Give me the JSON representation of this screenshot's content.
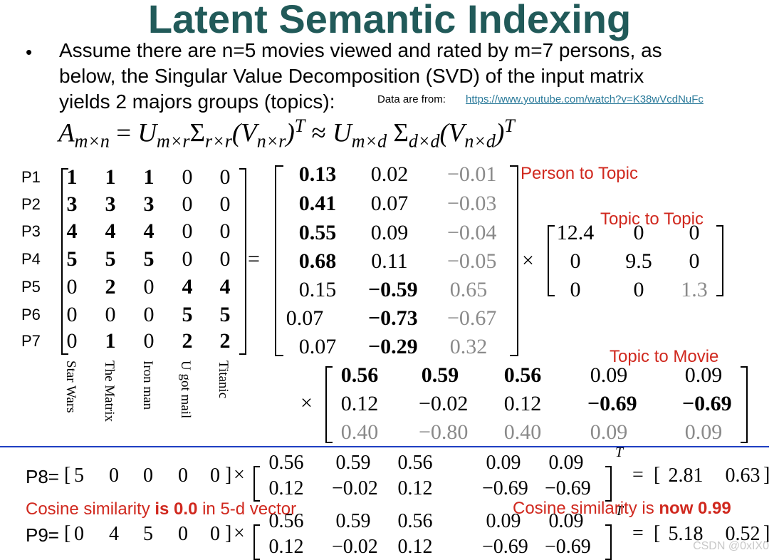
{
  "title": "Latent Semantic Indexing",
  "bullet": {
    "symbol": "•",
    "lines": [
      "Assume there are n=5 movies viewed and rated by m=7 persons, as",
      "below, the Singular Value Decomposition (SVD) of the input matrix",
      "yields 2 majors groups (topics):"
    ],
    "source_label": "Data are from:",
    "source_link": "https://www.youtube.com/watch?v=K38wVcdNuFc"
  },
  "equation": {
    "lhs": "A",
    "lhs_sub": "m×n",
    "eq": "=",
    "u": "U",
    "u_sub": "m×r",
    "s": "Σ",
    "s_sub": "r×r",
    "v_open": "(V",
    "v_sub": "n×r",
    "v_close": ")",
    "t": "T",
    "approx": "≈",
    "u2": "U",
    "u2_sub": "m×d",
    "s2": "Σ",
    "s2_sub": "d×d",
    "v2_open": "(V",
    "v2_sub": "n×d",
    "v2_close": ")",
    "t2": "T"
  },
  "persons": [
    "P1",
    "P2",
    "P3",
    "P4",
    "P5",
    "P6",
    "P7"
  ],
  "movies": [
    "Star Wars",
    "The Matrix",
    "Iron man",
    "U got mail",
    "Titanic"
  ],
  "ratings": [
    [
      "1",
      "1",
      "1",
      "0",
      "0"
    ],
    [
      "3",
      "3",
      "3",
      "0",
      "0"
    ],
    [
      "4",
      "4",
      "4",
      "0",
      "0"
    ],
    [
      "5",
      "5",
      "5",
      "0",
      "0"
    ],
    [
      "0",
      "2",
      "0",
      "4",
      "4"
    ],
    [
      "0",
      "0",
      "0",
      "5",
      "5"
    ],
    [
      "0",
      "1",
      "0",
      "2",
      "2"
    ]
  ],
  "ops": {
    "equals": "=",
    "times": "×"
  },
  "u_matrix": [
    [
      "0.13",
      "0.02",
      "−0.01"
    ],
    [
      "0.41",
      "0.07",
      "−0.03"
    ],
    [
      "0.55",
      "0.09",
      "−0.04"
    ],
    [
      "0.68",
      "0.11",
      "−0.05"
    ],
    [
      "0.15",
      "−0.59",
      "0.65"
    ],
    [
      "0.07",
      "−0.73",
      "−0.67"
    ],
    [
      "0.07",
      "−0.29",
      "0.32"
    ]
  ],
  "sigma_matrix": [
    [
      "12.4",
      "0",
      "0"
    ],
    [
      "0",
      "9.5",
      "0"
    ],
    [
      "0",
      "0",
      "1.3"
    ]
  ],
  "v_matrix": [
    [
      "0.56",
      "0.59",
      "0.56",
      "0.09",
      "0.09"
    ],
    [
      "0.12",
      "−0.02",
      "0.12",
      "−0.69",
      "−0.69"
    ],
    [
      "0.40",
      "−0.80",
      "0.40",
      "0.09",
      "0.09"
    ]
  ],
  "labels": {
    "person_to_topic": "Person to Topic",
    "topic_to_topic": "Topic to Topic",
    "topic_to_movie": "Topic to Movie"
  },
  "queries": [
    {
      "label": "P8=",
      "vector": [
        "5",
        "0",
        "0",
        "0",
        "0"
      ],
      "result": [
        "2.81",
        "0.63"
      ]
    },
    {
      "label": "P9=",
      "vector": [
        "0",
        "4",
        "5",
        "0",
        "0"
      ],
      "result": [
        "5.18",
        "0.52"
      ]
    }
  ],
  "query_matrix": [
    [
      "0.56",
      "0.59",
      "0.56",
      "0.09",
      "0.09"
    ],
    [
      "0.12",
      "−0.02",
      "0.12",
      "−0.69",
      "−0.69"
    ]
  ],
  "cosine": {
    "left_pre": "Cosine similarity ",
    "left_bold": "is 0.0",
    "left_post": " in 5-d vector",
    "right_pre": "Cosine similarity is ",
    "right_bold": "now 0.99"
  },
  "watermark": "CSDN @0xIX0",
  "colors": {
    "title": "#215a59",
    "annotation": "#d0281e",
    "link": "#2a7a9a",
    "divider": "#1f3fc2"
  }
}
